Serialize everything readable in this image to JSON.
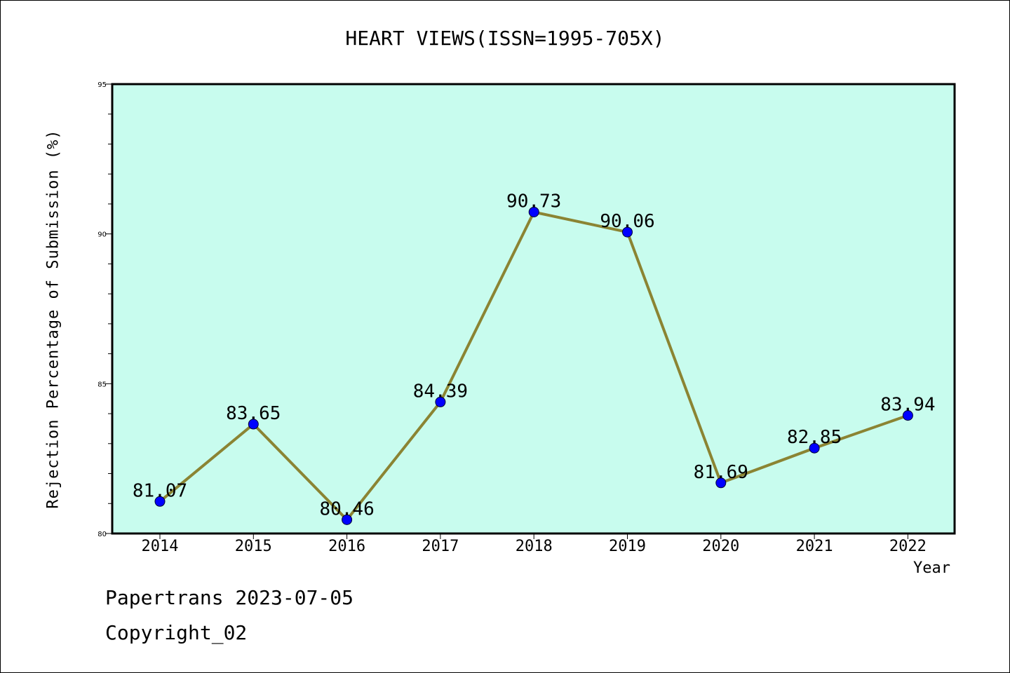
{
  "chart_data": {
    "type": "line",
    "title": "HEART VIEWS(ISSN=1995-705X)",
    "xlabel": "Year",
    "ylabel": "Rejection Percentage of Submission (%)",
    "categories": [
      "2014",
      "2015",
      "2016",
      "2017",
      "2018",
      "2019",
      "2020",
      "2021",
      "2022"
    ],
    "series": [
      {
        "values": [
          81.07,
          83.65,
          80.46,
          84.39,
          90.73,
          90.06,
          81.69,
          82.85,
          83.94
        ],
        "labels": [
          "81.07",
          "83.65",
          "80.46",
          "84.39",
          "90.73",
          "90.06",
          "81.69",
          "82.85",
          "83.94"
        ]
      }
    ],
    "ylim": [
      80,
      95
    ],
    "yticks": [
      "80",
      "85",
      "90",
      "95"
    ],
    "grid": false,
    "colors": {
      "plot_background": "#c8fcee",
      "line": "#8b8433",
      "marker": "#0000ff"
    }
  },
  "footer": {
    "date_text": "Papertrans 2023-07-05",
    "copyright_text": "Copyright_02"
  }
}
